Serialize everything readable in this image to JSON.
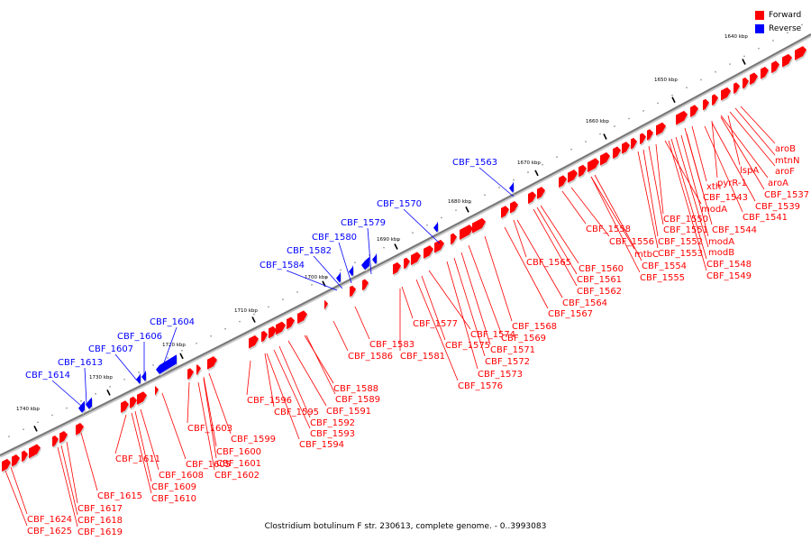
{
  "legend": {
    "forward_label": "Forward",
    "reverse_label": "Reverse",
    "forward_color": "#ff0000",
    "reverse_color": "#0000ff"
  },
  "caption": "Clostridium botulinum F str. 230613, complete genome. - 0..3993083",
  "ticks": [
    "1640 kbp",
    "1650 kbp",
    "1660 kbp",
    "1670 kbp",
    "1680 kbp",
    "1690 kbp",
    "1700 kbp",
    "1710 kbp",
    "1720 kbp",
    "1730 kbp",
    "1740 kbp"
  ],
  "forward_labels": [
    "aroB",
    "mtnN",
    "aroF",
    "lspA",
    "aroA",
    "pyrR-1",
    "CBF_1537",
    "xth",
    "CBF_1539",
    "CBF_1543",
    "CBF_1541",
    "modA",
    "CBF_1544",
    "CBF_1550",
    "CBF_1551",
    "modA",
    "CBF_1552",
    "modB",
    "CBF_1553",
    "CBF_1548",
    "CBF_1549",
    "CBF_1558",
    "CBF_1556",
    "mtbC",
    "CBF_1554",
    "CBF_1555",
    "CBF_1565",
    "CBF_1560",
    "CBF_1561",
    "CBF_1562",
    "CBF_1564",
    "CBF_1567",
    "CBF_1568",
    "CBF_1569",
    "CBF_1577",
    "CBF_1574",
    "CBF_1575",
    "CBF_1571",
    "CBF_1572",
    "CBF_1573",
    "CBF_1576",
    "CBF_1583",
    "CBF_1586",
    "CBF_1581",
    "CBF_1588",
    "CBF_1589",
    "CBF_1596",
    "CBF_1595",
    "CBF_1591",
    "CBF_1592",
    "CBF_1593",
    "CBF_1594",
    "CBF_1599",
    "CBF_1603",
    "CBF_1600",
    "CBF_1601",
    "CBF_1602",
    "CBF_1605",
    "CBF_1611",
    "CBF_1608",
    "CBF_1609",
    "CBF_1610",
    "CBF_1615",
    "CBF_1617",
    "CBF_1618",
    "CBF_1619",
    "CBF_1624",
    "CBF_1625"
  ],
  "reverse_labels": [
    "CBF_1563",
    "CBF_1570",
    "CBF_1579",
    "CBF_1580",
    "CBF_1582",
    "CBF_1584",
    "CBF_1604",
    "CBF_1606",
    "CBF_1607",
    "CBF_1613",
    "CBF_1614"
  ]
}
